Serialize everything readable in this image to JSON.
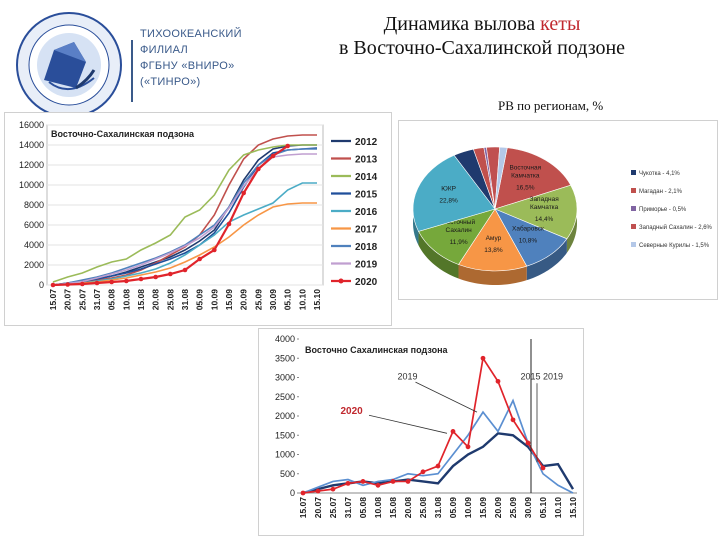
{
  "header": {
    "org_lines": [
      "ТИХООКЕАНСКИЙ",
      "ФИЛИАЛ",
      "ФГБНУ «ВНИРО»",
      "(«ТИНРО»)"
    ],
    "title_line1_pre": "Динамика вылова ",
    "title_line1_accent": "кеты",
    "title_line2": "в Восточно-Сахалинской подзоне",
    "pie_caption": "РВ по регионам, %"
  },
  "colors": {
    "accent": "#c0282e",
    "brand": "#3a5a8a"
  },
  "chart_data": [
    {
      "type": "line",
      "title": "Восточно-Сахалинская подзона",
      "ylim": [
        0,
        16000
      ],
      "yticks": [
        0,
        2000,
        4000,
        6000,
        8000,
        10000,
        12000,
        14000,
        16000
      ],
      "categories": [
        "15.07",
        "20.07",
        "25.07",
        "31.07",
        "05.08",
        "10.08",
        "15.08",
        "20.08",
        "25.08",
        "31.08",
        "05.09",
        "10.09",
        "15.09",
        "20.09",
        "25.09",
        "30.09",
        "05.10",
        "10.10",
        "15.10"
      ],
      "legend_position": "right",
      "series": [
        {
          "name": "2012",
          "color": "#1f3a6e",
          "values": [
            0,
            200,
            400,
            600,
            900,
            1300,
            1800,
            2300,
            2800,
            3500,
            4400,
            5500,
            7800,
            10500,
            12500,
            13600,
            13900,
            14000,
            14000
          ]
        },
        {
          "name": "2013",
          "color": "#c0504d",
          "values": [
            0,
            150,
            300,
            500,
            700,
            1000,
            1500,
            2200,
            3000,
            3800,
            5000,
            7000,
            10000,
            12600,
            14000,
            14600,
            14900,
            15000,
            15000
          ]
        },
        {
          "name": "2014",
          "color": "#9bbb59",
          "values": [
            300,
            800,
            1200,
            1800,
            2300,
            2600,
            3500,
            4200,
            5000,
            6800,
            7500,
            9000,
            11500,
            13000,
            13500,
            13800,
            14000,
            14000,
            14000
          ]
        },
        {
          "name": "2015",
          "color": "#1f4e9a",
          "values": [
            0,
            150,
            350,
            600,
            900,
            1200,
            1600,
            2100,
            2600,
            3200,
            4000,
            5200,
            7200,
            9800,
            12000,
            13200,
            13500,
            13600,
            13700
          ]
        },
        {
          "name": "2016",
          "color": "#4bacc6",
          "values": [
            0,
            100,
            200,
            400,
            600,
            900,
            1200,
            1600,
            2200,
            3000,
            4000,
            5000,
            6300,
            7000,
            7600,
            8200,
            9500,
            10200,
            10200
          ]
        },
        {
          "name": "2017",
          "color": "#f79646",
          "values": [
            0,
            100,
            200,
            300,
            500,
            700,
            1000,
            1300,
            1700,
            2300,
            3000,
            3800,
            4800,
            6000,
            7000,
            7800,
            8100,
            8200,
            8200
          ]
        },
        {
          "name": "2018",
          "color": "#4f81bd",
          "values": [
            0,
            200,
            500,
            800,
            1200,
            1700,
            2200,
            2700,
            3300,
            4000,
            5000,
            6000,
            7800,
            10200,
            12000,
            13000,
            13500,
            13600,
            13600
          ]
        },
        {
          "name": "2019",
          "color": "#c09fd0",
          "values": [
            0,
            150,
            350,
            700,
            1100,
            1500,
            2000,
            2600,
            3200,
            3900,
            4700,
            5800,
            7700,
            9900,
            11600,
            12800,
            13000,
            13100,
            13100
          ]
        },
        {
          "name": "2020",
          "color": "#e0242b",
          "values": [
            0,
            50,
            100,
            200,
            300,
            400,
            600,
            800,
            1100,
            1500,
            2600,
            3500,
            6100,
            9200,
            11600,
            12900,
            13900,
            null,
            null
          ]
        }
      ]
    },
    {
      "type": "pie",
      "slices": [
        {
          "label": "Восточная Камчатка",
          "value_label": "16,5%",
          "value": 16.5,
          "color": "#c0504d"
        },
        {
          "label": "Западная Камчатка",
          "value_label": "14,4%",
          "value": 14.4,
          "color": "#9bbb59"
        },
        {
          "label": "Хабаровск",
          "value_label": "10,8%",
          "value": 10.8,
          "color": "#4f81bd"
        },
        {
          "label": "Амур",
          "value_label": "13,8%",
          "value": 13.8,
          "color": "#f79646"
        },
        {
          "label": "Восточный Сахалин",
          "value_label": "11,9%",
          "value": 11.9,
          "color": "#76a83b"
        },
        {
          "label": "ЮКР",
          "value_label": "22,8%",
          "value": 22.8,
          "color": "#4bacc6"
        },
        {
          "label": "Чукотка",
          "value": 4.1,
          "color": "#1f3a6e"
        },
        {
          "label": "Магадан",
          "value": 2.1,
          "color": "#c0504d"
        },
        {
          "label": "Приморье",
          "value": 0.5,
          "color": "#8064a2"
        },
        {
          "label": "Западный Сахалин",
          "value": 2.6,
          "color": "#c05050"
        },
        {
          "label": "Северные Курилы",
          "value": 1.5,
          "color": "#b4c8e8"
        }
      ],
      "legend": [
        "Чукотка - 4,1%",
        "Магадан - 2,1%",
        "Приморье - 0,5%",
        "Западный Сахалин - 2,6%",
        "Северные Курилы - 1,5%"
      ],
      "legend_position": "right"
    },
    {
      "type": "line",
      "title": "Восточно Сахалинская подзона",
      "ylim": [
        0,
        4000
      ],
      "yticks": [
        0,
        500,
        1000,
        1500,
        2000,
        2500,
        3000,
        3500,
        4000
      ],
      "categories": [
        "15.07",
        "20.07",
        "25.07",
        "31.07",
        "05.08",
        "10.08",
        "15.08",
        "20.08",
        "25.08",
        "31.08",
        "05.09",
        "10.09",
        "15.09",
        "20.09",
        "25.09",
        "30.09",
        "05.10",
        "10.10",
        "15.10"
      ],
      "series": [
        {
          "name": "2015",
          "color": "#1f3a6e",
          "values": [
            0,
            100,
            200,
            250,
            300,
            250,
            300,
            350,
            300,
            250,
            700,
            1000,
            1200,
            1550,
            1500,
            1200,
            700,
            750,
            100
          ]
        },
        {
          "name": "2019",
          "color": "#5b8fd1",
          "values": [
            0,
            150,
            300,
            350,
            200,
            300,
            350,
            500,
            450,
            500,
            1000,
            1500,
            2100,
            1600,
            2400,
            1300,
            500,
            200,
            0
          ]
        },
        {
          "name": "2020",
          "color": "#e0242b",
          "values": [
            0,
            50,
            100,
            250,
            300,
            200,
            300,
            300,
            550,
            700,
            1600,
            1200,
            3500,
            2900,
            1900,
            1300,
            650,
            null,
            null
          ]
        }
      ],
      "annotations": [
        "2019",
        "2015 2019",
        "2020"
      ]
    }
  ]
}
